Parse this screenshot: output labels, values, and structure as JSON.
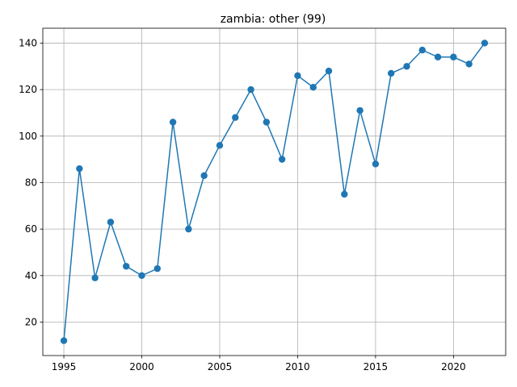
{
  "chart_data": {
    "type": "line",
    "title": "zambia: other (99)",
    "xlabel": "",
    "ylabel": "",
    "grid": true,
    "xlim": [
      1993.65,
      2023.35
    ],
    "ylim": [
      5.6,
      146.4
    ],
    "x_ticks": [
      1995,
      2000,
      2005,
      2010,
      2015,
      2020
    ],
    "y_ticks": [
      20,
      40,
      60,
      80,
      100,
      120,
      140
    ],
    "series": [
      {
        "color": "#1f77b4",
        "marker": "circle",
        "x": [
          1995,
          1996,
          1997,
          1998,
          1999,
          2000,
          2001,
          2002,
          2003,
          2004,
          2005,
          2006,
          2007,
          2008,
          2009,
          2010,
          2011,
          2012,
          2013,
          2014,
          2015,
          2016,
          2017,
          2018,
          2019,
          2020,
          2021,
          2022
        ],
        "values": [
          12,
          86,
          39,
          63,
          44,
          40,
          43,
          106,
          60,
          83,
          96,
          108,
          120,
          106,
          90,
          126,
          121,
          128,
          75,
          111,
          88,
          127,
          130,
          137,
          134,
          134,
          131,
          140
        ]
      }
    ]
  }
}
